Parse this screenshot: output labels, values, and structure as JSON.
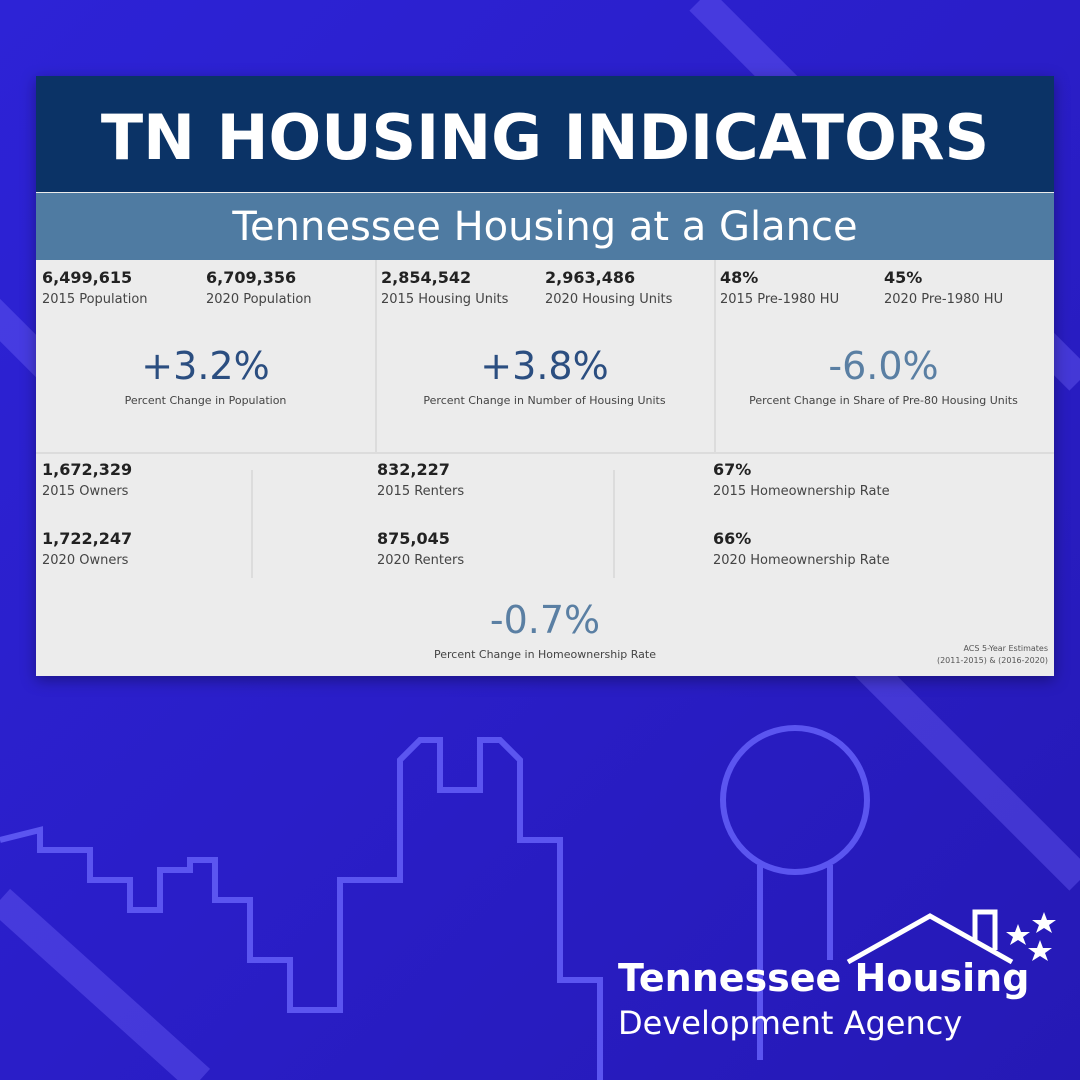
{
  "header": {
    "title": "TN HOUSING INDICATORS",
    "subtitle": "Tennessee Housing at a Glance"
  },
  "top_panels": [
    {
      "items": [
        {
          "value": "6,499,615",
          "label": "2015 Population"
        },
        {
          "value": "6,709,356",
          "label": "2020 Population"
        }
      ],
      "change": "+3.2%",
      "change_label": "Percent Change in Population"
    },
    {
      "items": [
        {
          "value": "2,854,542",
          "label": "2015 Housing Units"
        },
        {
          "value": "2,963,486",
          "label": "2020 Housing Units"
        }
      ],
      "change": "+3.8%",
      "change_label": "Percent Change in Number of Housing Units"
    },
    {
      "items": [
        {
          "value": "48%",
          "label": "2015 Pre-1980 HU"
        },
        {
          "value": "45%",
          "label": "2020 Pre-1980 HU"
        }
      ],
      "change": "-6.0%",
      "change_label": "Percent Change in Share of Pre-80 Housing Units"
    }
  ],
  "bottom_panel": {
    "columns": [
      {
        "items": [
          {
            "value": "1,672,329",
            "label": "2015 Owners"
          },
          {
            "value": "1,722,247",
            "label": "2020 Owners"
          }
        ]
      },
      {
        "items": [
          {
            "value": "832,227",
            "label": "2015 Renters"
          },
          {
            "value": "875,045",
            "label": "2020 Renters"
          }
        ]
      },
      {
        "items": [
          {
            "value": "67%",
            "label": "2015 Homeownership Rate"
          },
          {
            "value": "66%",
            "label": "2020 Homeownership Rate"
          }
        ]
      }
    ],
    "change": "-0.7%",
    "change_label": "Percent Change in Homeownership Rate",
    "source": [
      "ACS 5-Year Estimates",
      "(2011-2015) & (2016-2020)"
    ]
  },
  "logo": {
    "line1": "Tennessee Housing",
    "line2": "Development Agency"
  }
}
